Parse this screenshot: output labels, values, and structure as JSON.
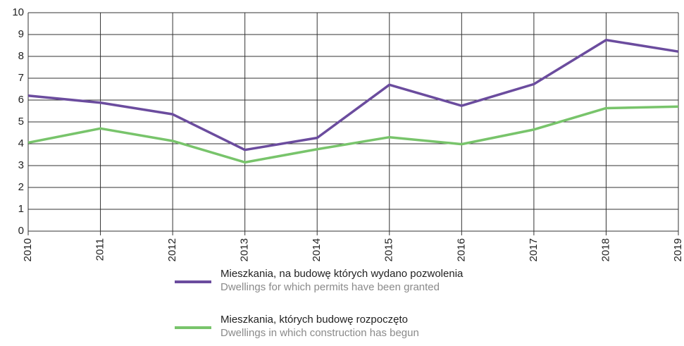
{
  "chart_data": {
    "type": "line",
    "x": [
      2010,
      2011,
      2012,
      2013,
      2014,
      2015,
      2016,
      2017,
      2018,
      2019
    ],
    "xlim": [
      2010,
      2019
    ],
    "xticks": [
      2010,
      2011,
      2012,
      2013,
      2014,
      2015,
      2016,
      2017,
      2018,
      2019
    ],
    "ylim": [
      0,
      10
    ],
    "yticks": [
      0,
      1,
      2,
      3,
      4,
      5,
      6,
      7,
      8,
      9,
      10
    ],
    "grid": true,
    "legend": "bottom",
    "series": [
      {
        "name": "Mieszkania, na budowę których wydano pozwolenia",
        "name_en": "Dwellings for which permits have been granted",
        "color": "#6b4c9e",
        "values": [
          6.2,
          5.88,
          5.35,
          3.72,
          4.27,
          6.7,
          5.74,
          6.73,
          8.75,
          8.22
        ]
      },
      {
        "name": "Mieszkania, których budowę rozpoczęto",
        "name_en": "Dwellings in which construction has begun",
        "color": "#78c46b",
        "values": [
          4.05,
          4.7,
          4.13,
          3.15,
          3.75,
          4.3,
          3.98,
          4.65,
          5.63,
          5.7
        ]
      }
    ]
  }
}
